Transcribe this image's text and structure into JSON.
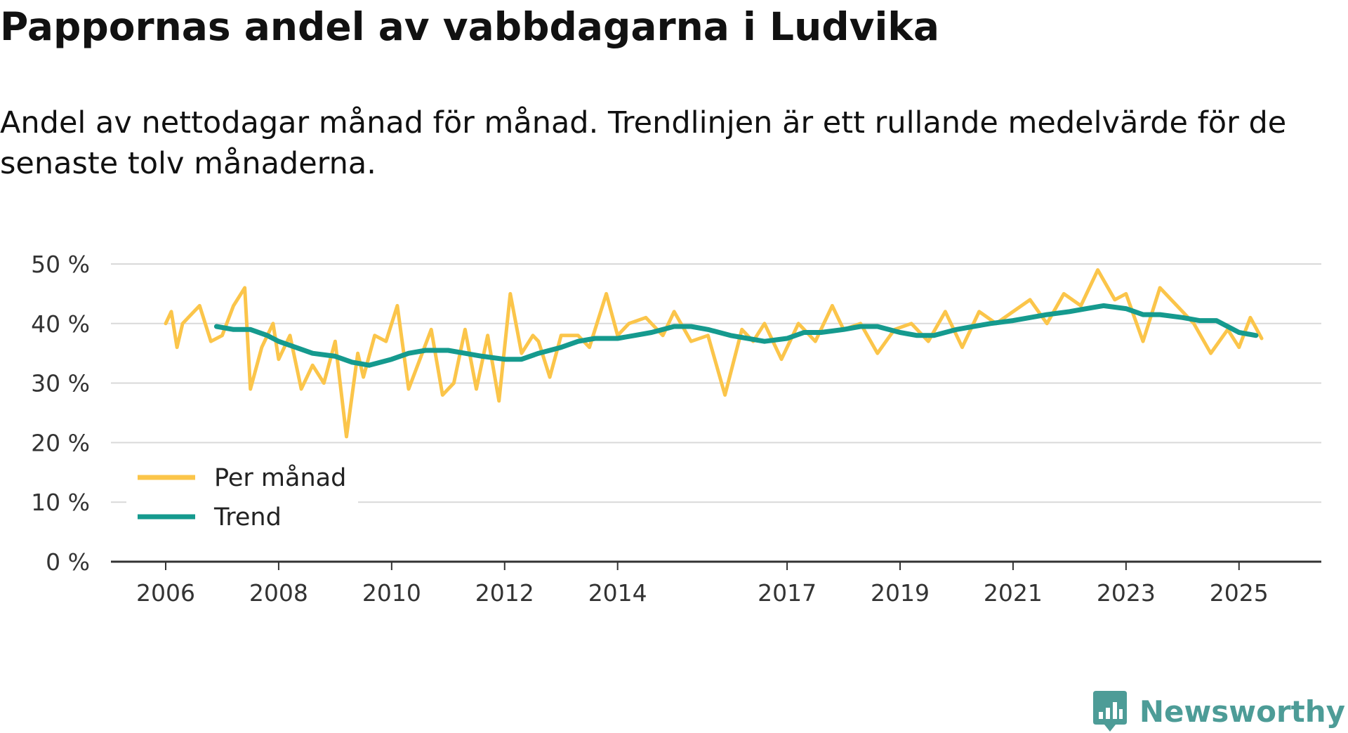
{
  "title": "Pappornas andel av vabbdagarna i Ludvika",
  "subtitle": "Andel av nettodagar månad för månad. Trendlinjen är ett rullande medelvärde för de senaste tolv månaderna.",
  "brand": {
    "name": "Newsworthy",
    "icon": "bar-chart-speech-bubble-icon",
    "color": "#4d9c97"
  },
  "colors": {
    "monthly": "#fbc54a",
    "trend": "#159a8e",
    "grid": "#d9d9d9",
    "axis": "#333333"
  },
  "chart_data": {
    "type": "line",
    "title": "Pappornas andel av vabbdagarna i Ludvika",
    "xlabel": "",
    "ylabel": "",
    "ylim": [
      0,
      50
    ],
    "xlim": [
      2006.0,
      2025.5
    ],
    "y_ticks": [
      0,
      10,
      20,
      30,
      40,
      50
    ],
    "y_tick_labels": [
      "0 %",
      "10 %",
      "20 %",
      "30 %",
      "40 %",
      "50 %"
    ],
    "x_ticks": [
      2006,
      2008,
      2010,
      2012,
      2014,
      2017,
      2019,
      2021,
      2023,
      2025
    ],
    "x_tick_labels": [
      "2006",
      "2008",
      "2010",
      "2012",
      "2014",
      "2017",
      "2019",
      "2021",
      "2023",
      "2025"
    ],
    "grid": true,
    "legend_position": "bottom-left",
    "series": [
      {
        "name": "Per månad",
        "color": "#fbc54a",
        "x": [
          2006.0,
          2006.1,
          2006.2,
          2006.3,
          2006.5,
          2006.6,
          2006.8,
          2007.0,
          2007.2,
          2007.4,
          2007.5,
          2007.7,
          2007.9,
          2008.0,
          2008.2,
          2008.4,
          2008.6,
          2008.8,
          2009.0,
          2009.2,
          2009.4,
          2009.5,
          2009.7,
          2009.9,
          2010.1,
          2010.3,
          2010.5,
          2010.7,
          2010.9,
          2011.1,
          2011.3,
          2011.5,
          2011.7,
          2011.9,
          2012.1,
          2012.3,
          2012.5,
          2012.6,
          2012.8,
          2013.0,
          2013.3,
          2013.5,
          2013.8,
          2014.0,
          2014.2,
          2014.5,
          2014.8,
          2015.0,
          2015.3,
          2015.6,
          2015.9,
          2016.2,
          2016.4,
          2016.6,
          2016.9,
          2017.2,
          2017.5,
          2017.8,
          2018.0,
          2018.3,
          2018.6,
          2018.9,
          2019.2,
          2019.5,
          2019.8,
          2020.1,
          2020.4,
          2020.7,
          2021.0,
          2021.3,
          2021.6,
          2021.9,
          2022.2,
          2022.5,
          2022.8,
          2023.0,
          2023.3,
          2023.6,
          2023.9,
          2024.2,
          2024.5,
          2024.8,
          2025.0,
          2025.2,
          2025.4
        ],
        "values": [
          40,
          42,
          36,
          40,
          42,
          43,
          37,
          38,
          43,
          46,
          29,
          36,
          40,
          34,
          38,
          29,
          33,
          30,
          37,
          21,
          35,
          31,
          38,
          37,
          43,
          29,
          34,
          39,
          28,
          30,
          39,
          29,
          38,
          27,
          45,
          35,
          38,
          37,
          31,
          38,
          38,
          36,
          45,
          38,
          40,
          41,
          38,
          42,
          37,
          38,
          28,
          39,
          37,
          40,
          34,
          40,
          37,
          43,
          39,
          40,
          35,
          39,
          40,
          37,
          42,
          36,
          42,
          40,
          42,
          44,
          40,
          45,
          43,
          49,
          44,
          45,
          37,
          46,
          43,
          40,
          35,
          39,
          36,
          41,
          37.5
        ]
      },
      {
        "name": "Trend",
        "color": "#159a8e",
        "x": [
          2006.9,
          2007.2,
          2007.5,
          2007.8,
          2008.0,
          2008.3,
          2008.6,
          2009.0,
          2009.3,
          2009.6,
          2010.0,
          2010.3,
          2010.6,
          2011.0,
          2011.3,
          2011.6,
          2012.0,
          2012.3,
          2012.6,
          2013.0,
          2013.3,
          2013.6,
          2014.0,
          2014.3,
          2014.6,
          2015.0,
          2015.3,
          2015.6,
          2016.0,
          2016.3,
          2016.6,
          2017.0,
          2017.3,
          2017.6,
          2018.0,
          2018.3,
          2018.6,
          2019.0,
          2019.3,
          2019.6,
          2020.0,
          2020.3,
          2020.6,
          2021.0,
          2021.3,
          2021.6,
          2022.0,
          2022.3,
          2022.6,
          2023.0,
          2023.3,
          2023.6,
          2024.0,
          2024.3,
          2024.6,
          2025.0,
          2025.3
        ],
        "values": [
          39.5,
          39.0,
          39.0,
          38.0,
          37.0,
          36.0,
          35.0,
          34.5,
          33.5,
          33.0,
          34.0,
          35.0,
          35.5,
          35.5,
          35.0,
          34.5,
          34.0,
          34.0,
          35.0,
          36.0,
          37.0,
          37.5,
          37.5,
          38.0,
          38.5,
          39.5,
          39.5,
          39.0,
          38.0,
          37.5,
          37.0,
          37.5,
          38.5,
          38.5,
          39.0,
          39.5,
          39.5,
          38.5,
          38.0,
          38.0,
          39.0,
          39.5,
          40.0,
          40.5,
          41.0,
          41.5,
          42.0,
          42.5,
          43.0,
          42.5,
          41.5,
          41.5,
          41.0,
          40.5,
          40.5,
          38.5,
          38.0
        ]
      }
    ]
  }
}
